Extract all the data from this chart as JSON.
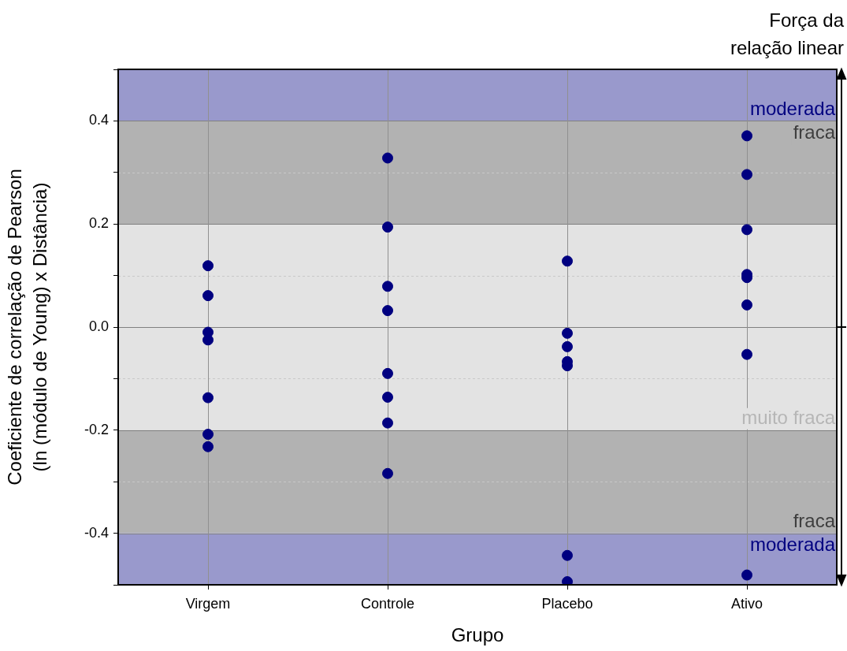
{
  "chart_data": {
    "type": "scatter",
    "xlabel": "Grupo",
    "ylabel": "Coeficiente de correlação de Pearson\n(ln (módulo de Young) x Distância)",
    "categories": [
      "Virgem",
      "Controle",
      "Placebo",
      "Ativo"
    ],
    "series": [
      {
        "color": "#000080",
        "x": [
          "Virgem",
          "Virgem",
          "Virgem",
          "Virgem",
          "Virgem",
          "Virgem",
          "Virgem",
          "Controle",
          "Controle",
          "Controle",
          "Controle",
          "Controle",
          "Controle",
          "Controle",
          "Controle",
          "Placebo",
          "Placebo",
          "Placebo",
          "Placebo",
          "Placebo",
          "Placebo",
          "Placebo",
          "Ativo",
          "Ativo",
          "Ativo",
          "Ativo",
          "Ativo",
          "Ativo",
          "Ativo",
          "Ativo"
        ],
        "values": [
          0.119,
          0.061,
          -0.01,
          -0.025,
          -0.137,
          -0.208,
          -0.232,
          0.328,
          0.194,
          0.079,
          0.032,
          -0.09,
          -0.136,
          -0.186,
          -0.284,
          0.128,
          -0.012,
          -0.038,
          -0.067,
          -0.075,
          -0.443,
          -0.494,
          0.371,
          0.296,
          0.189,
          0.102,
          0.096,
          0.043,
          -0.053,
          -0.481
        ]
      }
    ],
    "ylim": [
      -0.5,
      0.5
    ],
    "yticks": [
      {
        "value": -0.5,
        "label": null
      },
      -0.4,
      {
        "value": -0.3,
        "label": null
      },
      -0.2,
      {
        "value": -0.1,
        "label": null
      },
      {
        "value": 0,
        "label": "0.0"
      },
      {
        "value": 0.1,
        "label": null
      },
      0.2,
      {
        "value": 0.3,
        "label": null
      },
      0.4,
      {
        "value": 0.5,
        "label": null
      }
    ],
    "bands": [
      {
        "axis": "y",
        "from": 0.4,
        "to": 0.5,
        "label": "moderada",
        "color": "#9999cc"
      },
      {
        "axis": "y",
        "from": 0.2,
        "to": 0.4,
        "label": "fraca",
        "color": "#b2b2b2"
      },
      {
        "axis": "y",
        "from": -0.2,
        "to": 0.2,
        "label": "muito fraca",
        "color": "#e3e3e3"
      },
      {
        "axis": "y",
        "from": -0.4,
        "to": -0.2,
        "label": "fraca",
        "color": "#b2b2b2"
      },
      {
        "axis": "y",
        "from": -0.5,
        "to": -0.4,
        "label": "moderada",
        "color": "#9999cc"
      }
    ],
    "annotations": [
      "Força da\nrelação linear"
    ],
    "grid": true,
    "legend": false,
    "marker": "circle"
  }
}
